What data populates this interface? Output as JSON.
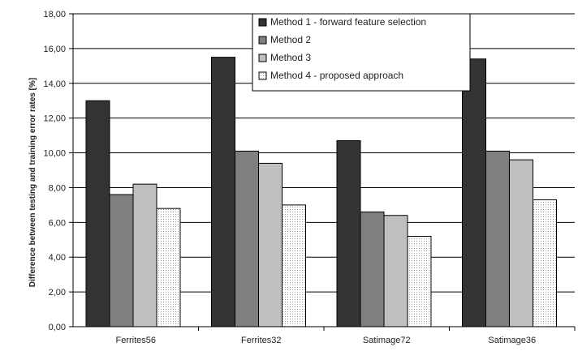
{
  "chart_data": {
    "type": "bar",
    "title": "",
    "xlabel": "",
    "ylabel": "Difference between testing and training error rates [%]",
    "ylim": [
      0,
      18
    ],
    "ytick_step": 2,
    "ytick_labels": [
      "0,00",
      "2,00",
      "4,00",
      "6,00",
      "8,00",
      "10,00",
      "12,00",
      "14,00",
      "16,00",
      "18,00"
    ],
    "grid": true,
    "legend_position": "top-center",
    "categories": [
      "Ferrites56",
      "Ferrites32",
      "Satimage72",
      "Satimage36"
    ],
    "series": [
      {
        "name": "Method 1 - forward feature selection",
        "values": [
          13.0,
          15.5,
          10.7,
          15.4
        ],
        "color": "#333333"
      },
      {
        "name": "Method 2",
        "values": [
          7.6,
          10.1,
          6.6,
          10.1
        ],
        "color": "#7f7f7f"
      },
      {
        "name": "Method 3",
        "values": [
          8.2,
          9.4,
          6.4,
          9.6
        ],
        "color": "#bfbfbf"
      },
      {
        "name": "Method 4 - proposed approach",
        "values": [
          6.8,
          7.0,
          5.2,
          7.3
        ],
        "color": "#ffffff",
        "pattern": "dotted"
      }
    ]
  }
}
